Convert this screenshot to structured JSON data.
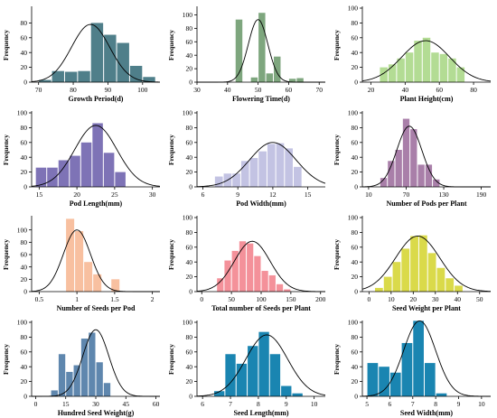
{
  "chart_data": [
    {
      "type": "bar",
      "xlabel": "Growth Period(d)",
      "ylabel": "Frequency",
      "xlim": [
        68,
        105
      ],
      "ylim": [
        0,
        100
      ],
      "xticks": [
        70,
        80,
        90,
        100
      ],
      "yticks": [
        0,
        20,
        40,
        60,
        80
      ],
      "bin_start": 70,
      "bin_width": 3.75,
      "values": [
        3,
        15,
        14,
        15,
        80,
        64,
        53,
        22,
        7
      ],
      "curve": {
        "mean": 85,
        "sd": 5.5,
        "peak": 78
      },
      "color": "#4f7f8a"
    },
    {
      "type": "bar",
      "xlabel": "Flowering Time(d)",
      "ylabel": "Frequency",
      "xlim": [
        30,
        72
      ],
      "ylim": [
        0,
        110
      ],
      "xticks": [
        30,
        40,
        50,
        60,
        70
      ],
      "yticks": [
        0,
        20,
        40,
        60,
        80,
        100
      ],
      "bin_start": 42.5,
      "bin_width": 2.5,
      "values": [
        93,
        0,
        7,
        103,
        13,
        38,
        0,
        5,
        6
      ],
      "curve": {
        "mean": 50,
        "sd": 3.2,
        "peak": 93
      },
      "color": "#7ea67e"
    },
    {
      "type": "bar",
      "xlabel": "Plant Height(cm)",
      "ylabel": "Frequency",
      "xlim": [
        15,
        90
      ],
      "ylim": [
        0,
        100
      ],
      "xticks": [
        20,
        40,
        60,
        80
      ],
      "yticks": [
        0,
        20,
        40,
        60,
        80,
        100
      ],
      "bin_start": 25,
      "bin_width": 5,
      "values": [
        20,
        24,
        32,
        40,
        56,
        60,
        40,
        38,
        32,
        20
      ],
      "curve": {
        "mean": 52,
        "sd": 14,
        "peak": 56
      },
      "color": "#b3dc94"
    },
    {
      "type": "bar",
      "xlabel": "Pod Length(mm)",
      "ylabel": "Frequency",
      "xlim": [
        14,
        31
      ],
      "ylim": [
        0,
        100
      ],
      "xticks": [
        15,
        20,
        25,
        30
      ],
      "yticks": [
        0,
        20,
        40,
        60,
        80,
        100
      ],
      "bin_start": 14.5,
      "bin_width": 1.5,
      "values": [
        26,
        26,
        36,
        42,
        60,
        86,
        46,
        20
      ],
      "curve": {
        "mean": 22.5,
        "sd": 2.8,
        "peak": 83
      },
      "color": "#7e73b6"
    },
    {
      "type": "bar",
      "xlabel": "Pod Width(mm)",
      "ylabel": "Frequency",
      "xlim": [
        5.5,
        16.5
      ],
      "ylim": [
        0,
        100
      ],
      "xticks": [
        6,
        9,
        12,
        15
      ],
      "yticks": [
        0,
        20,
        40,
        60,
        80,
        100
      ],
      "bin_start": 7,
      "bin_width": 0.75,
      "values": [
        14,
        18,
        18,
        35,
        39,
        48,
        58,
        59,
        52,
        27
      ],
      "curve": {
        "mean": 12,
        "sd": 2,
        "peak": 60
      },
      "color": "#c3c3e3"
    },
    {
      "type": "bar",
      "xlabel": "Number of Pods per Plant",
      "ylabel": "Frequency",
      "xlim": [
        0,
        205
      ],
      "ylim": [
        0,
        100
      ],
      "xticks": [
        10,
        70,
        130,
        190
      ],
      "yticks": [
        0,
        20,
        40,
        60,
        80,
        100
      ],
      "bin_start": 28,
      "bin_width": 12,
      "values": [
        12,
        35,
        50,
        92,
        78,
        30,
        30,
        10
      ],
      "curve": {
        "mean": 75,
        "sd": 20,
        "peak": 82
      },
      "color": "#a97fa9"
    },
    {
      "type": "bar",
      "xlabel": "Number of Seeds per Pod",
      "ylabel": "Frequency",
      "xlim": [
        0.4,
        2.1
      ],
      "ylim": [
        0,
        120
      ],
      "xticks": [
        0.5,
        1.0,
        1.5,
        2.0
      ],
      "yticks": [
        0,
        20,
        40,
        60,
        80,
        100
      ],
      "bin_start": 0.85,
      "bin_width": 0.12,
      "values": [
        118,
        98,
        48,
        28,
        0,
        20,
        0
      ],
      "curve": {
        "mean": 1.0,
        "sd": 0.18,
        "peak": 100
      },
      "color": "#f8c0a0"
    },
    {
      "type": "bar",
      "xlabel": "Total number of Seeds per Plant",
      "ylabel": "Frequency",
      "xlim": [
        -8,
        208
      ],
      "ylim": [
        0,
        100
      ],
      "xticks": [
        0,
        50,
        100,
        150,
        200
      ],
      "yticks": [
        0,
        20,
        40,
        60,
        80,
        100
      ],
      "bin_start": 25,
      "bin_width": 12.5,
      "values": [
        18,
        42,
        55,
        68,
        65,
        48,
        28,
        22,
        10,
        3
      ],
      "curve": {
        "mean": 85,
        "sd": 30,
        "peak": 68
      },
      "color": "#f4919a"
    },
    {
      "type": "bar",
      "xlabel": "Seed Weight per Plant",
      "ylabel": "Frequency",
      "xlim": [
        -3,
        55
      ],
      "ylim": [
        0,
        100
      ],
      "xticks": [
        0,
        10,
        20,
        30,
        40,
        50
      ],
      "yticks": [
        0,
        20,
        40,
        60,
        80,
        100
      ],
      "bin_start": 2.5,
      "bin_width": 4,
      "values": [
        5,
        20,
        40,
        58,
        75,
        76,
        52,
        32,
        18,
        8
      ],
      "curve": {
        "mean": 22,
        "sd": 10,
        "peak": 75
      },
      "color": "#dada4a"
    },
    {
      "type": "bar",
      "xlabel": "Hundred Seed Weight(g)",
      "ylabel": "Frequency",
      "xlim": [
        -2,
        62
      ],
      "ylim": [
        0,
        100
      ],
      "xticks": [
        0,
        15,
        30,
        45,
        60
      ],
      "yticks": [
        0,
        20,
        40,
        60,
        80,
        100
      ],
      "bin_start": 7.5,
      "bin_width": 3.75,
      "values": [
        8,
        57,
        33,
        42,
        78,
        86,
        46,
        18
      ],
      "curve": {
        "mean": 30,
        "sd": 6.5,
        "peak": 90
      },
      "color": "#5f87ae"
    },
    {
      "type": "bar",
      "xlabel": "Seed Length(mm)",
      "ylabel": "Frequency",
      "xlim": [
        5.8,
        10.4
      ],
      "ylim": [
        0,
        100
      ],
      "xticks": [
        6,
        7,
        8,
        9,
        10
      ],
      "yticks": [
        0,
        20,
        40,
        60,
        80,
        100
      ],
      "bin_start": 6.4,
      "bin_width": 0.4,
      "values": [
        7,
        57,
        44,
        68,
        87,
        57,
        14,
        4
      ],
      "curve": {
        "mean": 8.3,
        "sd": 0.75,
        "peak": 83
      },
      "color": "#1a85b1"
    },
    {
      "type": "bar",
      "xlabel": "Seed Width(mm)",
      "ylabel": "Frequency",
      "xlim": [
        4.8,
        10.4
      ],
      "ylim": [
        0,
        100
      ],
      "xticks": [
        5,
        6,
        7,
        8,
        9,
        10
      ],
      "yticks": [
        0,
        20,
        40,
        60,
        80,
        100
      ],
      "bin_start": 5.0,
      "bin_width": 0.5,
      "values": [
        45,
        40,
        32,
        72,
        102,
        45,
        4
      ],
      "curve": {
        "mean": 7.3,
        "sd": 0.7,
        "peak": 102
      },
      "color": "#1a85b1"
    }
  ]
}
